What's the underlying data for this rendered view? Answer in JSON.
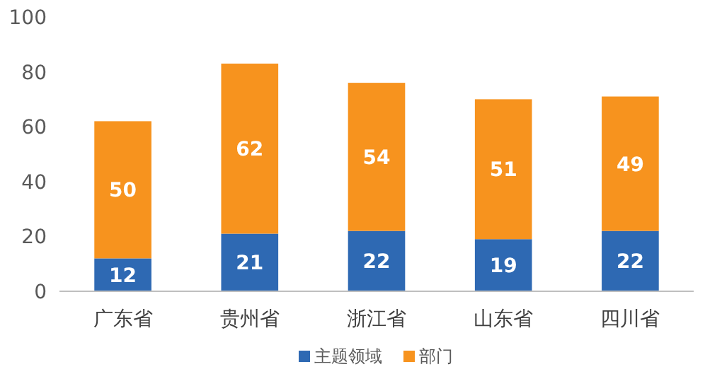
{
  "chart_data": {
    "type": "bar",
    "stacked": true,
    "categories": [
      "广东省",
      "贵州省",
      "浙江省",
      "山东省",
      "四川省"
    ],
    "series": [
      {
        "name": "主题领域",
        "color": "#2e69b3",
        "values": [
          12,
          21,
          22,
          19,
          22
        ]
      },
      {
        "name": "部门",
        "color": "#f7931e",
        "values": [
          50,
          62,
          54,
          51,
          49
        ]
      }
    ],
    "ylim": [
      0,
      100
    ],
    "yticks": [
      0,
      20,
      40,
      60,
      80,
      100
    ],
    "data_labels": true,
    "legend": "bottom",
    "grid": false
  }
}
